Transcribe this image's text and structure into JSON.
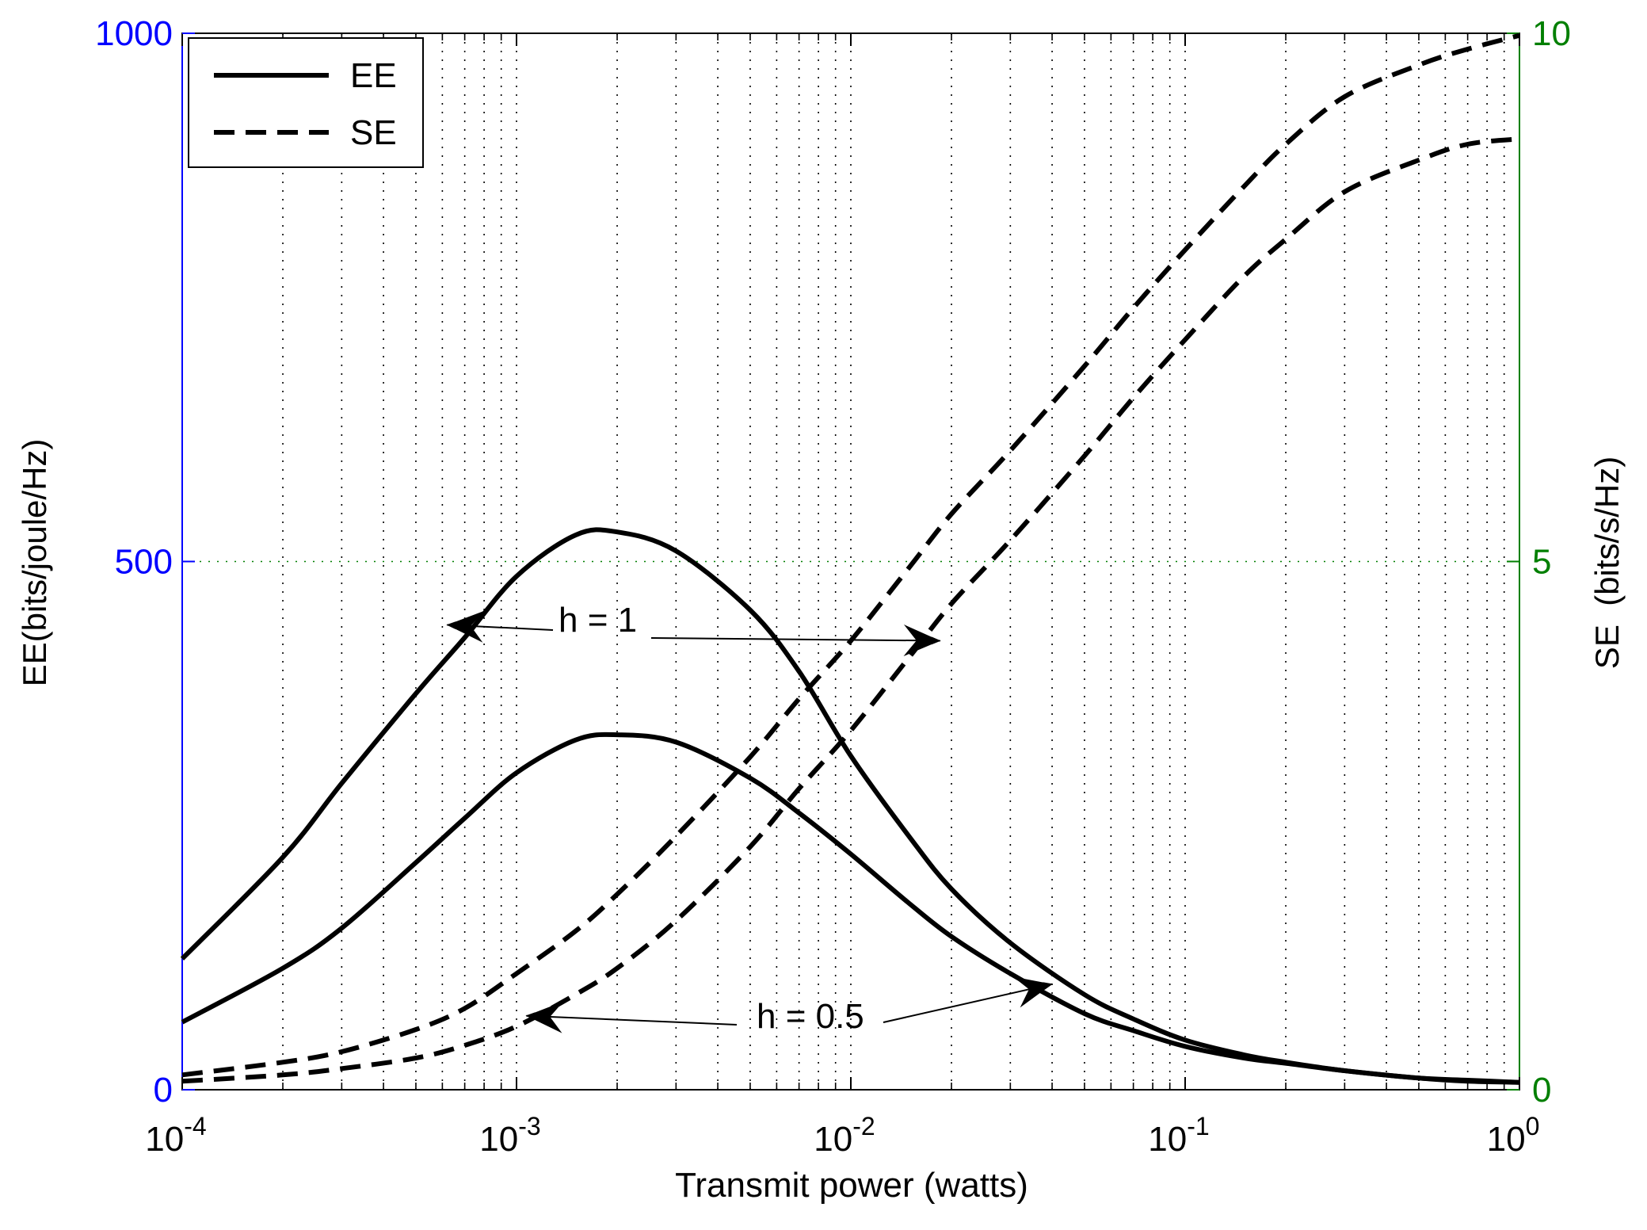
{
  "colors": {
    "left_axis": "#0000ff",
    "right_axis": "#007f00",
    "curve": "#000000",
    "grid": "#000000",
    "grid_right": "#007f00"
  },
  "chart_data": {
    "type": "line",
    "x_scale": "log",
    "xlabel": "Transmit power (watts)",
    "ylabel_left": "EE(bits/joule/Hz)",
    "ylabel_right": "SE  (bits/s/Hz)",
    "xlim": [
      0.0001,
      1
    ],
    "ylim_left": [
      0,
      1000
    ],
    "ylim_right": [
      0,
      10
    ],
    "x_ticks": [
      {
        "base": "10",
        "exp": "-4",
        "value": 0.0001
      },
      {
        "base": "10",
        "exp": "-3",
        "value": 0.001
      },
      {
        "base": "10",
        "exp": "-2",
        "value": 0.01
      },
      {
        "base": "10",
        "exp": "-1",
        "value": 0.1
      },
      {
        "base": "10",
        "exp": "0",
        "value": 1
      }
    ],
    "y_ticks_left": [
      "0",
      "500",
      "1000"
    ],
    "y_ticks_right": [
      "0",
      "5",
      "10"
    ],
    "grid": true,
    "legend": {
      "position": "top-left",
      "entries": [
        {
          "label": "EE",
          "style": "solid"
        },
        {
          "label": "SE",
          "style": "dashed"
        }
      ]
    },
    "x": [
      0.0001,
      0.0002,
      0.0003,
      0.0005,
      0.0007,
      0.001,
      0.0015,
      0.002,
      0.003,
      0.005,
      0.007,
      0.01,
      0.015,
      0.02,
      0.03,
      0.05,
      0.07,
      0.1,
      0.15,
      0.2,
      0.3,
      0.5,
      0.7,
      1.0
    ],
    "series": [
      {
        "name": "EE, h = 1",
        "axis": "left",
        "style": "solid",
        "values": [
          124,
          220,
          290,
          375,
          428,
          486,
          525,
          528,
          510,
          454,
          396,
          316,
          239,
          190,
          139,
          90,
          67,
          47,
          33,
          26,
          18,
          11,
          8,
          7
        ]
      },
      {
        "name": "EE, h = 0.5",
        "axis": "left",
        "style": "solid",
        "values": [
          64,
          115,
          153,
          215,
          257,
          300,
          331,
          336,
          329,
          295,
          262,
          223,
          176,
          145,
          110,
          72,
          56,
          41,
          30,
          25,
          18,
          11,
          9,
          7
        ]
      },
      {
        "name": "SE, h = 1",
        "axis": "right",
        "style": "dashed",
        "values": [
          0.14,
          0.26,
          0.36,
          0.57,
          0.77,
          1.1,
          1.5,
          1.85,
          2.4,
          3.15,
          3.7,
          4.25,
          4.95,
          5.45,
          6.05,
          6.85,
          7.4,
          7.95,
          8.55,
          8.95,
          9.4,
          9.7,
          9.85,
          9.98
        ]
      },
      {
        "name": "SE, h = 0.5",
        "axis": "right",
        "style": "dashed",
        "values": [
          0.08,
          0.14,
          0.2,
          0.3,
          0.42,
          0.6,
          0.9,
          1.15,
          1.6,
          2.3,
          2.85,
          3.4,
          4.1,
          4.6,
          5.2,
          6.0,
          6.55,
          7.1,
          7.7,
          8.05,
          8.5,
          8.8,
          8.95,
          9.0
        ]
      }
    ],
    "annotations": [
      {
        "text": "h = 1",
        "targets": [
          {
            "x": 0.00062,
            "y_left": 440
          },
          {
            "x": 0.0185,
            "y_right": 4.25
          }
        ]
      },
      {
        "text": "h = 0.5",
        "targets": [
          {
            "x": 0.00107,
            "y_right": 0.7
          },
          {
            "x": 0.04,
            "y_left": 100
          }
        ]
      }
    ]
  }
}
